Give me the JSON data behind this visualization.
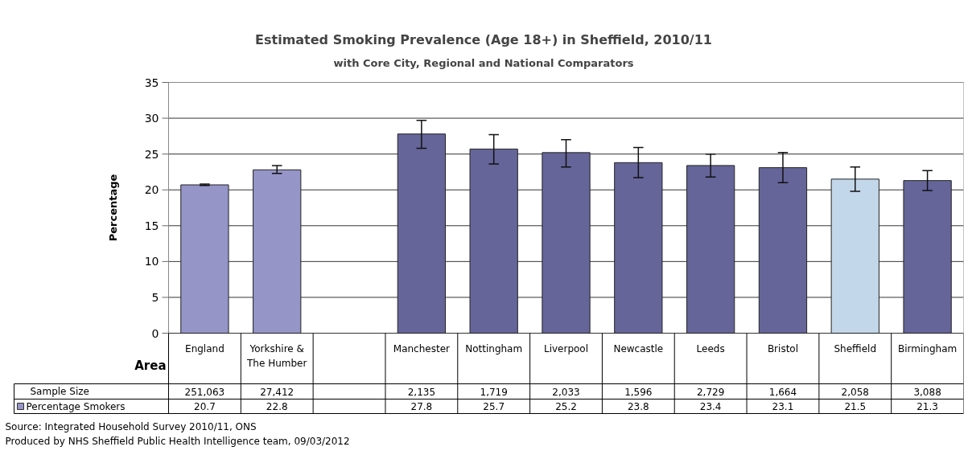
{
  "chart_data": {
    "type": "bar",
    "title": "Estimated Smoking Prevalence (Age 18+) in Sheffield, 2010/11",
    "subtitle": "with Core City, Regional and National Comparators",
    "xlabel": "Area",
    "ylabel": "Percentage",
    "categories": [
      "England",
      "Yorkshire & The Humber",
      null,
      "Manchester",
      "Nottingham",
      "Liverpool",
      "Newcastle",
      "Leeds",
      "Bristol",
      "Sheffield",
      "Birmingham"
    ],
    "series": [
      {
        "name": "Percentage Smokers",
        "color": "#9595c8",
        "colors": [
          "#9595c8",
          "#9595c8",
          "#9595c8",
          "#65659a",
          "#65659a",
          "#65659a",
          "#65659a",
          "#65659a",
          "#65659a",
          "#c3d7ea",
          "#65659a"
        ],
        "values": [
          20.7,
          22.8,
          null,
          27.8,
          25.7,
          25.2,
          23.8,
          23.4,
          23.1,
          21.5,
          21.3
        ],
        "errors": [
          [
            20.6,
            20.8
          ],
          [
            22.3,
            23.4
          ],
          null,
          [
            25.8,
            29.7
          ],
          [
            23.6,
            27.7
          ],
          [
            23.2,
            27.0
          ],
          [
            21.7,
            25.9
          ],
          [
            21.8,
            25.0
          ],
          [
            21.0,
            25.2
          ],
          [
            19.8,
            23.2
          ],
          [
            19.9,
            22.7
          ]
        ]
      }
    ],
    "ylim": [
      0,
      35
    ],
    "yticks": [
      0,
      5,
      10,
      15,
      20,
      25,
      30,
      35
    ],
    "grid": "y",
    "data_labels": true,
    "annotations": [
      "Sample Size",
      "251,063",
      "27,412",
      "2,135",
      "1,719",
      "2,033",
      "1,596",
      "2,729",
      "1,664",
      "2,058",
      "3,088",
      "Source: Integrated Household Survey 2010/11, ONS",
      "Produced by NHS Sheffield Public Health Intelligence team, 09/03/2012"
    ]
  }
}
